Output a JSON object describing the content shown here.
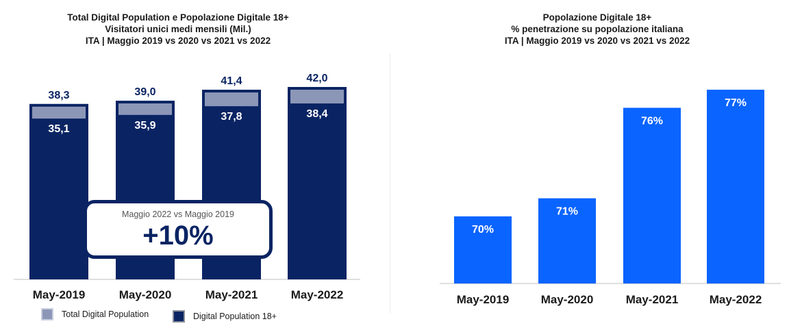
{
  "left_title": {
    "line1": "Total Digital Population e Popolazione Digitale 18+",
    "line2": "Visitatori unici medi mensili (Mil.)",
    "line3": "ITA | Maggio 2019 vs 2020 vs 2021 vs 2022"
  },
  "right_title": {
    "line1": "Popolazione Digitale 18+",
    "line2": "% penetrazione su popolazione italiana",
    "line3": "ITA | Maggio 2019 vs 2020 vs 2021 vs 2022"
  },
  "callout": {
    "subtitle": "Maggio 2022 vs Maggio 2019",
    "value": "+10%"
  },
  "legend": {
    "total_label": "Total Digital Population",
    "adult_label": "Digital Population 18+"
  },
  "colors": {
    "total": "#8c97b8",
    "adult": "#0a2463",
    "penetration": "#0a64ff"
  },
  "chart_data": [
    {
      "type": "bar",
      "categories": [
        "May-2019",
        "May-2020",
        "May-2021",
        "May-2022"
      ],
      "series": [
        {
          "name": "Total Digital Population",
          "values": [
            38.3,
            39.0,
            41.4,
            42.0
          ],
          "labels": [
            "38,3",
            "39,0",
            "41,4",
            "42,0"
          ]
        },
        {
          "name": "Digital Population 18+",
          "values": [
            35.1,
            35.9,
            37.8,
            38.4
          ],
          "labels": [
            "35,1",
            "35,9",
            "37,8",
            "38,4"
          ]
        }
      ],
      "title": "Total Digital Population e Popolazione Digitale 18+",
      "ylim": [
        0,
        42.0
      ]
    },
    {
      "type": "bar",
      "categories": [
        "May-2019",
        "May-2020",
        "May-2021",
        "May-2022"
      ],
      "values": [
        70,
        71,
        76,
        77
      ],
      "labels": [
        "70%",
        "71%",
        "76%",
        "77%"
      ],
      "title": "Popolazione Digitale 18+",
      "ylim": [
        0,
        77
      ]
    }
  ]
}
